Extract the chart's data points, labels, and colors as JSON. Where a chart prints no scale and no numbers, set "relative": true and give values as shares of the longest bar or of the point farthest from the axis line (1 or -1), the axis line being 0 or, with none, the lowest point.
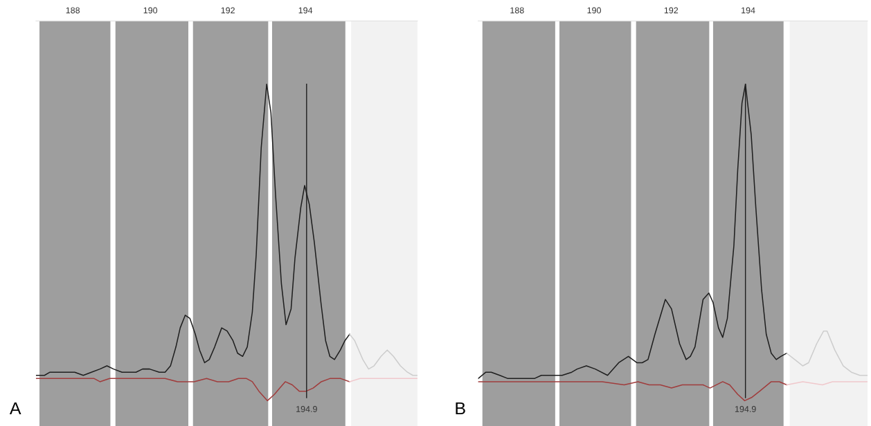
{
  "chart_data": [
    {
      "type": "line",
      "relative": true,
      "tick_labels": "x",
      "xlim": [
        187.05,
        196.89
      ],
      "xticks": [
        188,
        190,
        192,
        194
      ],
      "annotations": [
        "A",
        "194.9"
      ],
      "bands": [
        {
          "axis": "x",
          "from": 187.14,
          "to": 188.97,
          "color": "#9e9e9e"
        },
        {
          "axis": "x",
          "from": 189.1,
          "to": 190.98,
          "color": "#9e9e9e"
        },
        {
          "axis": "x",
          "from": 191.1,
          "to": 193.04,
          "color": "#9e9e9e"
        },
        {
          "axis": "x",
          "from": 193.14,
          "to": 195.03,
          "color": "#9e9e9e"
        },
        {
          "axis": "x",
          "from": 195.18,
          "to": 196.89,
          "color": "#f2f2f2"
        }
      ],
      "ref_lines": [
        {
          "axis": "x",
          "value": 194.03,
          "color": "#1e1e1e"
        }
      ],
      "series": [
        {
          "color": "#1e1e1e",
          "x": [
            187.05,
            187.27,
            187.41,
            187.63,
            187.88,
            188.05,
            188.27,
            188.48,
            188.7,
            188.88,
            189.05,
            189.27,
            189.41,
            189.63,
            189.8,
            189.98,
            190.23,
            190.38,
            190.52,
            190.66,
            190.77,
            190.9,
            191.02,
            191.16,
            191.27,
            191.4,
            191.52,
            191.66,
            191.84,
            191.98,
            192.13,
            192.25,
            192.38,
            192.5,
            192.63,
            192.73,
            192.86,
            193.0,
            193.11,
            193.23,
            193.38,
            193.5,
            193.63,
            193.73,
            193.88,
            193.98,
            194.1,
            194.23,
            194.4,
            194.52,
            194.63,
            194.75,
            194.9,
            195.02,
            195.14
          ],
          "values": [
            0.08,
            0.08,
            0.09,
            0.09,
            0.09,
            0.09,
            0.08,
            0.09,
            0.1,
            0.11,
            0.1,
            0.09,
            0.09,
            0.09,
            0.1,
            0.1,
            0.09,
            0.09,
            0.11,
            0.17,
            0.23,
            0.27,
            0.26,
            0.21,
            0.16,
            0.12,
            0.13,
            0.17,
            0.23,
            0.22,
            0.19,
            0.15,
            0.14,
            0.17,
            0.28,
            0.46,
            0.8,
            1.0,
            0.91,
            0.65,
            0.37,
            0.24,
            0.29,
            0.45,
            0.61,
            0.68,
            0.62,
            0.5,
            0.31,
            0.19,
            0.14,
            0.13,
            0.16,
            0.19,
            0.21
          ]
        },
        {
          "color": "#cdcdcd",
          "x": [
            195.14,
            195.27,
            195.48,
            195.63,
            195.77,
            195.95,
            196.11,
            196.27,
            196.45,
            196.63,
            196.77,
            196.89
          ],
          "values": [
            0.21,
            0.19,
            0.13,
            0.1,
            0.11,
            0.14,
            0.16,
            0.14,
            0.11,
            0.09,
            0.08,
            0.08
          ]
        },
        {
          "color": "#a03c3c",
          "x": [
            187.05,
            188.55,
            188.7,
            188.95,
            189.05,
            190.38,
            190.7,
            190.91,
            191.13,
            191.45,
            191.73,
            192.02,
            192.27,
            192.48,
            192.63,
            192.8,
            193.02,
            193.2,
            193.34,
            193.48,
            193.66,
            193.84,
            194.02,
            194.2,
            194.41,
            194.63,
            194.91,
            195.14
          ],
          "values": [
            0.07,
            0.07,
            0.06,
            0.07,
            0.07,
            0.07,
            0.06,
            0.06,
            0.06,
            0.07,
            0.06,
            0.06,
            0.07,
            0.07,
            0.06,
            0.03,
            0.0,
            0.02,
            0.04,
            0.06,
            0.05,
            0.03,
            0.03,
            0.04,
            0.06,
            0.07,
            0.07,
            0.06
          ]
        },
        {
          "color": "#f0c8cc",
          "x": [
            195.14,
            195.41,
            196.13,
            196.89
          ],
          "values": [
            0.06,
            0.07,
            0.07,
            0.07
          ]
        }
      ]
    },
    {
      "type": "line",
      "relative": true,
      "tick_labels": "x",
      "xlim": [
        186.99,
        197.1
      ],
      "xticks": [
        188,
        190,
        192,
        194
      ],
      "annotations": [
        "B",
        "194.9"
      ],
      "bands": [
        {
          "axis": "x",
          "from": 187.1,
          "to": 188.99,
          "color": "#9e9e9e"
        },
        {
          "axis": "x",
          "from": 189.1,
          "to": 190.96,
          "color": "#9e9e9e"
        },
        {
          "axis": "x",
          "from": 191.09,
          "to": 192.99,
          "color": "#9e9e9e"
        },
        {
          "axis": "x",
          "from": 193.09,
          "to": 194.92,
          "color": "#9e9e9e"
        },
        {
          "axis": "x",
          "from": 195.08,
          "to": 197.1,
          "color": "#f2f2f2"
        }
      ],
      "ref_lines": [
        {
          "axis": "x",
          "value": 193.93,
          "color": "#1e1e1e"
        }
      ],
      "series": [
        {
          "color": "#1e1e1e",
          "x": [
            186.99,
            187.19,
            187.33,
            187.55,
            187.76,
            187.98,
            188.27,
            188.45,
            188.63,
            188.91,
            189.17,
            189.42,
            189.56,
            189.8,
            190.03,
            190.35,
            190.64,
            190.89,
            191.11,
            191.25,
            191.4,
            191.58,
            191.85,
            192.01,
            192.22,
            192.39,
            192.5,
            192.62,
            192.83,
            192.98,
            193.09,
            193.23,
            193.34,
            193.46,
            193.63,
            193.73,
            193.84,
            193.93,
            194.08,
            194.2,
            194.35,
            194.47,
            194.6,
            194.73,
            194.85,
            195.0
          ],
          "values": [
            0.07,
            0.09,
            0.09,
            0.08,
            0.07,
            0.07,
            0.07,
            0.07,
            0.08,
            0.08,
            0.08,
            0.09,
            0.1,
            0.11,
            0.1,
            0.08,
            0.12,
            0.14,
            0.12,
            0.12,
            0.13,
            0.21,
            0.32,
            0.29,
            0.18,
            0.13,
            0.14,
            0.17,
            0.32,
            0.34,
            0.31,
            0.23,
            0.2,
            0.26,
            0.49,
            0.73,
            0.94,
            1.0,
            0.84,
            0.61,
            0.35,
            0.21,
            0.15,
            0.13,
            0.14,
            0.15
          ]
        },
        {
          "color": "#cdcdcd",
          "x": [
            195.0,
            195.21,
            195.42,
            195.57,
            195.78,
            195.96,
            196.05,
            196.25,
            196.47,
            196.68,
            196.9,
            197.1
          ],
          "values": [
            0.15,
            0.13,
            0.11,
            0.12,
            0.18,
            0.22,
            0.22,
            0.16,
            0.11,
            0.09,
            0.08,
            0.08
          ]
        },
        {
          "color": "#a03c3c",
          "x": [
            186.99,
            187.33,
            187.76,
            188.3,
            188.7,
            188.99,
            189.63,
            190.21,
            190.78,
            191.14,
            191.43,
            191.72,
            192.01,
            192.29,
            192.62,
            192.83,
            193.01,
            193.34,
            193.52,
            193.73,
            193.91,
            194.09,
            194.3,
            194.6,
            194.81,
            195.0
          ],
          "values": [
            0.06,
            0.06,
            0.06,
            0.06,
            0.06,
            0.06,
            0.06,
            0.06,
            0.05,
            0.06,
            0.05,
            0.05,
            0.04,
            0.05,
            0.05,
            0.05,
            0.04,
            0.06,
            0.05,
            0.02,
            0.0,
            0.01,
            0.03,
            0.06,
            0.06,
            0.05
          ]
        },
        {
          "color": "#f0c8cc",
          "x": [
            195.0,
            195.42,
            195.93,
            196.19,
            197.1
          ],
          "values": [
            0.05,
            0.06,
            0.05,
            0.06,
            0.06
          ]
        }
      ]
    }
  ]
}
